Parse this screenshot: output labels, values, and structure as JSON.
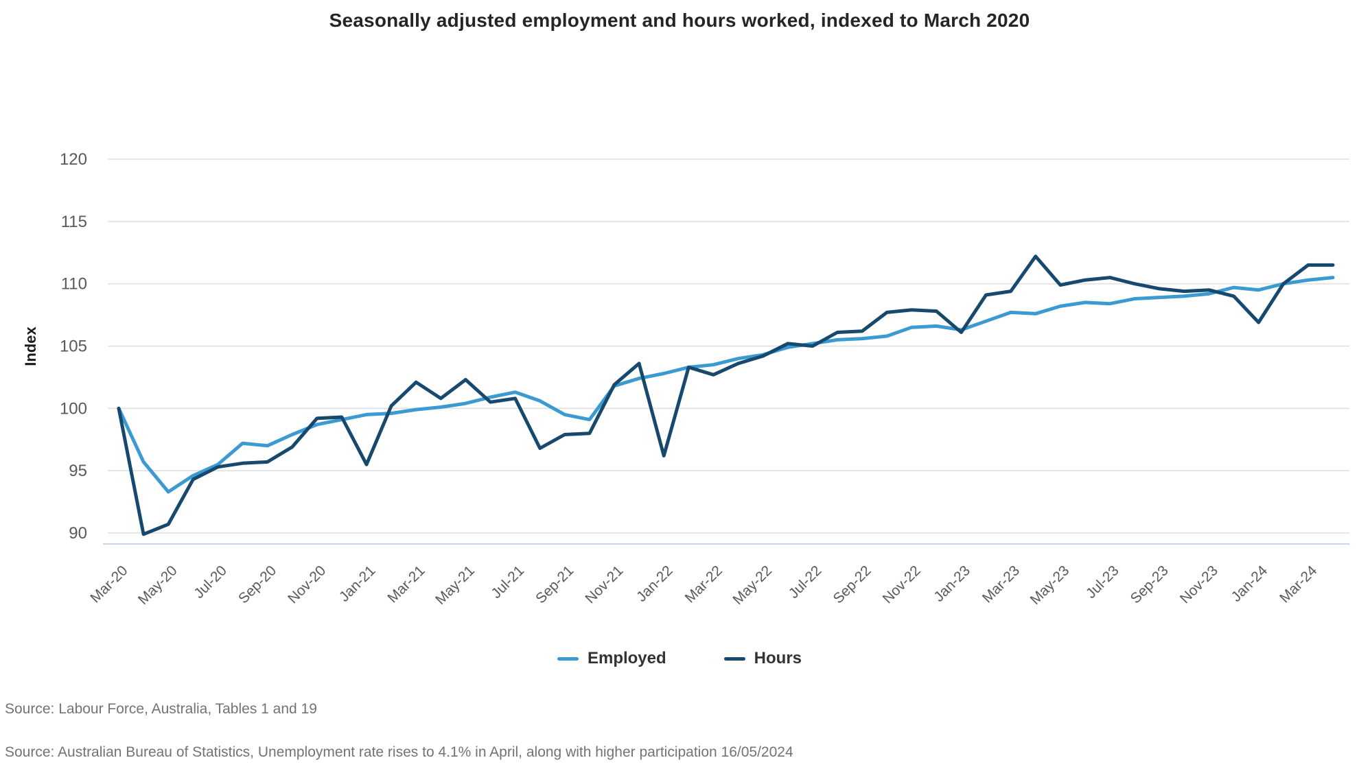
{
  "title": "Seasonally adjusted employment and hours worked, indexed to March 2020",
  "legend": [
    {
      "label": "Employed",
      "color": "#3b9ad2"
    },
    {
      "label": "Hours",
      "color": "#17496f"
    }
  ],
  "sources": [
    "Source: Labour Force, Australia, Tables 1 and 19",
    "Source: Australian Bureau of Statistics, Unemployment rate rises to 4.1% in April, along with higher participation 16/05/2024"
  ],
  "colors": {
    "gridline": "#e2e2e2",
    "axis_line": "#c8d6ec",
    "tick_text": "#595959",
    "title_text": "#252525",
    "source_text": "#737373"
  },
  "chart_data": {
    "type": "line",
    "title": "Seasonally adjusted employment and hours worked, indexed to March 2020",
    "xlabel": "",
    "ylabel": "Index",
    "grid": "horizontal",
    "legend_position": "bottom",
    "ylim": [
      89.1,
      122.5
    ],
    "yticks": [
      90,
      95,
      100,
      105,
      110,
      115,
      120
    ],
    "x_tick_step": 2,
    "x": [
      "Mar-20",
      "Apr-20",
      "May-20",
      "Jun-20",
      "Jul-20",
      "Aug-20",
      "Sep-20",
      "Oct-20",
      "Nov-20",
      "Dec-20",
      "Jan-21",
      "Feb-21",
      "Mar-21",
      "Apr-21",
      "May-21",
      "Jun-21",
      "Jul-21",
      "Aug-21",
      "Sep-21",
      "Oct-21",
      "Nov-21",
      "Dec-21",
      "Jan-22",
      "Feb-22",
      "Mar-22",
      "Apr-22",
      "May-22",
      "Jun-22",
      "Jul-22",
      "Aug-22",
      "Sep-22",
      "Oct-22",
      "Nov-22",
      "Dec-22",
      "Jan-23",
      "Feb-23",
      "Mar-23",
      "Apr-23",
      "May-23",
      "Jun-23",
      "Jul-23",
      "Aug-23",
      "Sep-23",
      "Oct-23",
      "Nov-23",
      "Dec-23",
      "Jan-24",
      "Feb-24",
      "Mar-24",
      "Apr-24"
    ],
    "series": [
      {
        "name": "Employed",
        "color": "#3b9ad2",
        "values": [
          100.0,
          95.7,
          93.3,
          94.6,
          95.5,
          97.2,
          97.0,
          97.9,
          98.7,
          99.1,
          99.5,
          99.6,
          99.9,
          100.1,
          100.4,
          100.9,
          101.3,
          100.6,
          99.5,
          99.1,
          101.8,
          102.4,
          102.8,
          103.3,
          103.5,
          104.0,
          104.3,
          104.9,
          105.2,
          105.5,
          105.6,
          105.8,
          106.5,
          106.6,
          106.3,
          107.0,
          107.7,
          107.6,
          108.2,
          108.5,
          108.4,
          108.8,
          108.9,
          109.0,
          109.2,
          109.7,
          109.5,
          110.0,
          110.3,
          110.5
        ]
      },
      {
        "name": "Hours",
        "color": "#17496f",
        "values": [
          100.0,
          89.9,
          90.7,
          94.3,
          95.3,
          95.6,
          95.7,
          96.9,
          99.2,
          99.3,
          95.5,
          100.2,
          102.1,
          100.8,
          102.3,
          100.5,
          100.8,
          96.8,
          97.9,
          98.0,
          101.9,
          103.6,
          96.2,
          103.3,
          102.7,
          103.6,
          104.2,
          105.2,
          105.0,
          106.1,
          106.2,
          107.7,
          107.9,
          107.8,
          106.1,
          109.1,
          109.4,
          112.2,
          109.9,
          110.3,
          110.5,
          110.0,
          109.6,
          109.4,
          109.5,
          109.0,
          106.9,
          110.0,
          111.5,
          111.5
        ]
      }
    ]
  }
}
